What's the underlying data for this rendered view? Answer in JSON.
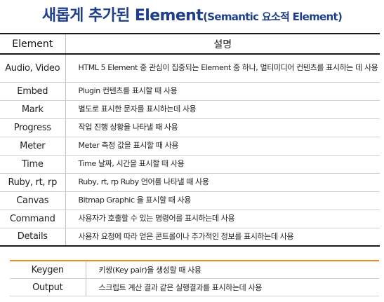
{
  "title": {
    "main": "새롭게 추가된 Element",
    "sub": "(Semantic 요소적 Element)"
  },
  "table": {
    "headers": [
      "Element",
      "설명"
    ],
    "rows": [
      {
        "element": "Audio, Video",
        "description": "HTML 5 Element 중 관심이 집중되는 Element 중 하나, 멀티미디어 컨텐츠를 표시하는 데 사용"
      },
      {
        "element": "Embed",
        "description": "Plugin 컨텐츠를 표시할 때 사용"
      },
      {
        "element": "Mark",
        "description": "별도로 표시한 문자를 표시하는데 사용"
      },
      {
        "element": "Progress",
        "description": "작업 진행 상황을 나타낼 때 사용"
      },
      {
        "element": "Meter",
        "description": "Meter 측정 값을 표시할 때 사용"
      },
      {
        "element": "Time",
        "description": "Time 날짜, 시간을 표시할 때 사용"
      },
      {
        "element": "Ruby, rt, rp",
        "description": "Ruby, rt, rp Ruby 언어를 나타낼 때 사용"
      },
      {
        "element": "Canvas",
        "description": "Bitmap Graphic 을 표시할 때 사용"
      },
      {
        "element": "Command",
        "description": "사용자가 호출할 수 있는 명령어를 표시하는데 사용"
      },
      {
        "element": "Details",
        "description": "사용자 요청에 따라 얻은 콘트롤이나 추가적인 정보를 표시하는데 사용"
      }
    ]
  },
  "extra_table": {
    "rows": [
      {
        "element": "Keygen",
        "description": "키쌍(Key pair)을 생성할 때 사용"
      },
      {
        "element": "Output",
        "description": "스크립트 계산 결과 같은 실행결과를 표시하는데 사용"
      }
    ]
  },
  "colors": {
    "title": "#1f3f8a",
    "accent_line": "#f08a24",
    "rule": "#1a1a1a"
  }
}
